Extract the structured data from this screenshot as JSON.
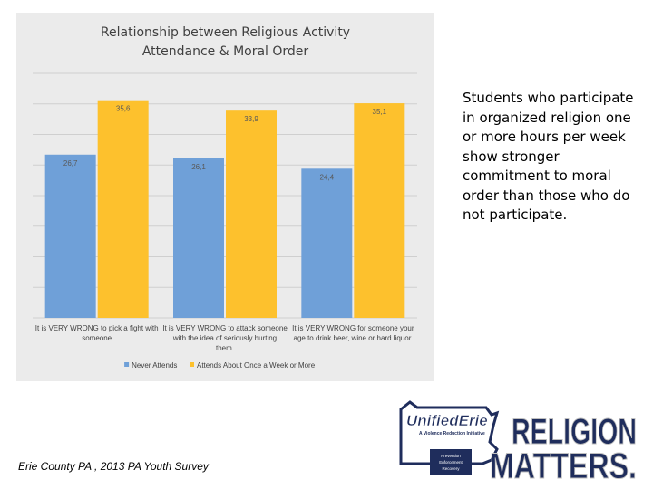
{
  "chart_data": {
    "type": "bar",
    "title": "Relationship between Religious Activity\nAttendance & Moral Order",
    "categories": [
      [
        "It is VERY WRONG to pick a fight with",
        "someone"
      ],
      [
        "It is VERY WRONG to attack someone",
        "with the idea of seriously hurting",
        "them."
      ],
      [
        "It is VERY WRONG for someone your",
        "age to drink beer, wine or hard liquor."
      ]
    ],
    "series": [
      {
        "name": "Never Attends",
        "values": [
          26.7,
          26.1,
          24.4
        ],
        "labels": [
          "26,7",
          "26,1",
          "24,4"
        ],
        "color": "#6fa0d8"
      },
      {
        "name": "Attends About Once a Week or More",
        "values": [
          35.6,
          33.9,
          35.1
        ],
        "labels": [
          "35,6",
          "33,9",
          "35,1"
        ],
        "color": "#fdc12d"
      }
    ],
    "ylim": [
      0,
      40
    ],
    "grid": true,
    "legend": "bottom"
  },
  "side_text": "Students who participate in organized religion one or more hours per week show stronger commitment to moral order than those who do not participate.",
  "source_text": "Erie County PA , 2013 PA Youth Survey",
  "logo": {
    "brand": "UnifiedErie",
    "tagline": "A Violence Reduction Initiative",
    "badge": [
      "Prevention",
      "Enforcement",
      "Recovery"
    ],
    "headline_1": "RELIGION",
    "headline_2": "MATTERS.",
    "navy": "#1f2d5c",
    "grey": "#bfbfbf"
  }
}
